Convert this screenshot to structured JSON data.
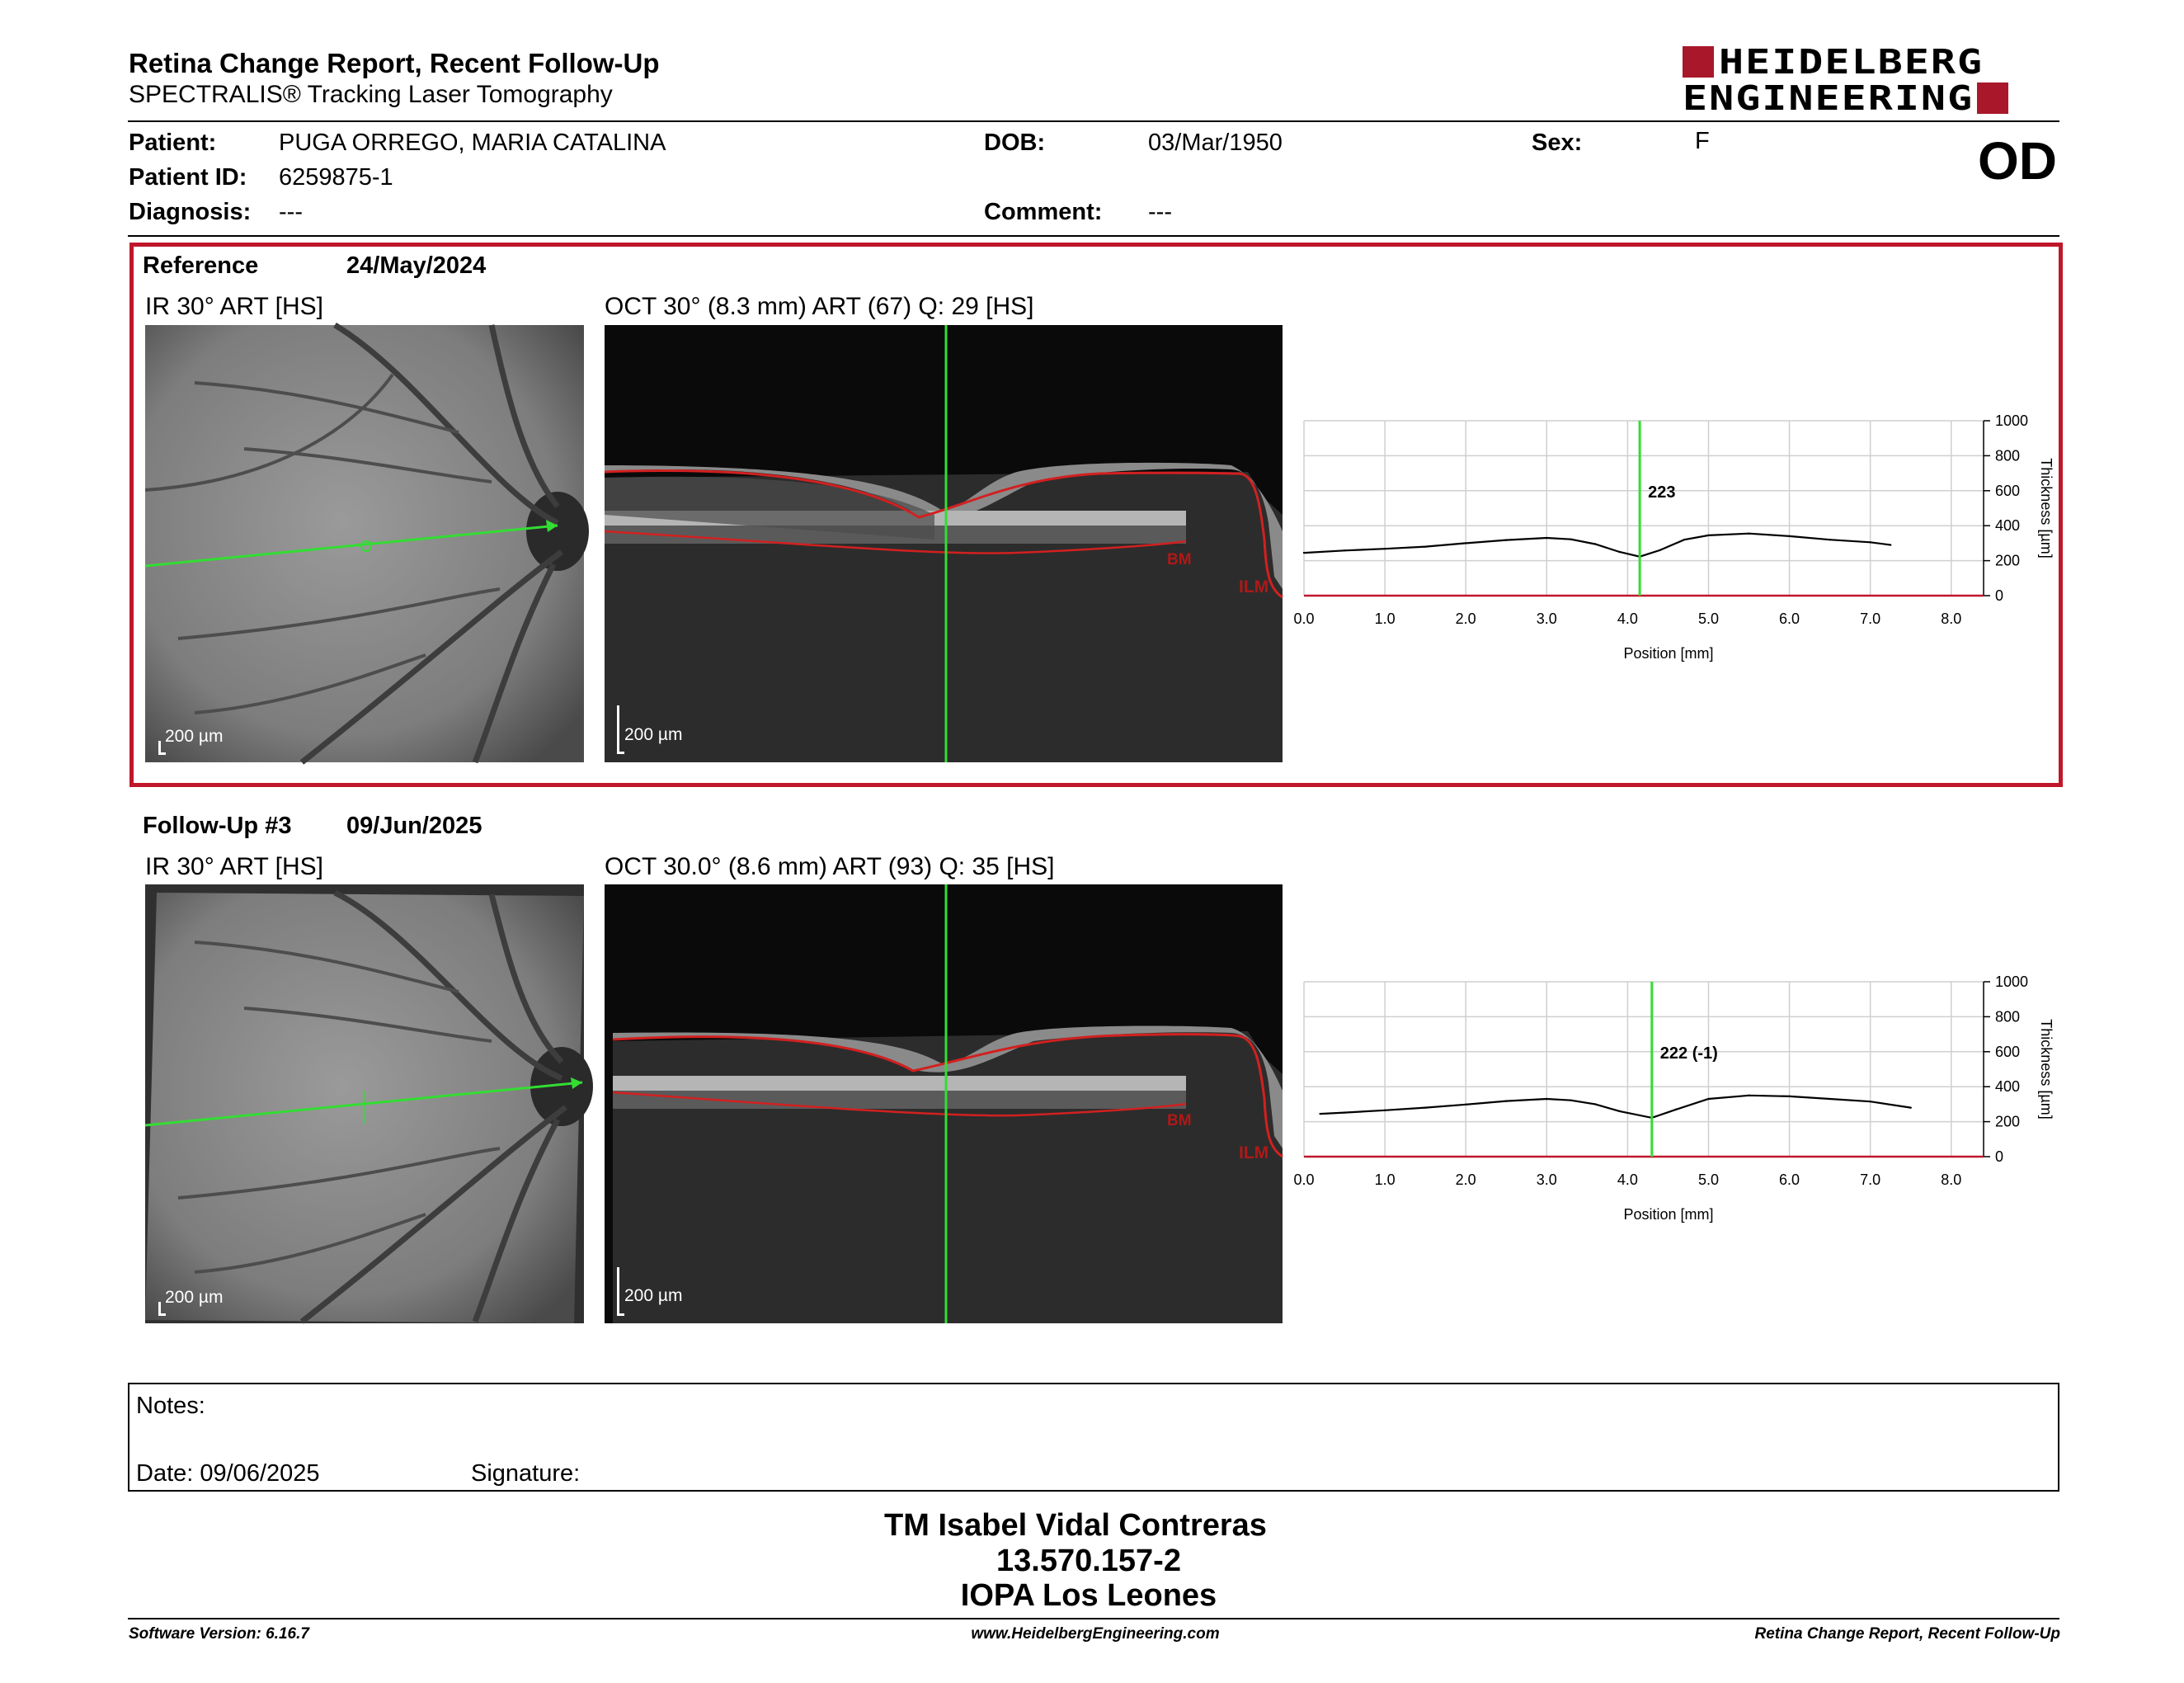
{
  "report": {
    "title": "Retina Change Report, Recent Follow-Up",
    "subtitle": "SPECTRALIS® Tracking Laser Tomography"
  },
  "logo": {
    "line1": "HEIDELBERG",
    "line2": "ENGINEERING",
    "accent_color": "#a8182a"
  },
  "patient": {
    "patient_label": "Patient:",
    "patient_value": "PUGA ORREGO, MARIA CATALINA",
    "id_label": "Patient ID:",
    "id_value": "6259875-1",
    "diagnosis_label": "Diagnosis:",
    "diagnosis_value": "---",
    "dob_label": "DOB:",
    "dob_value": "03/Mar/1950",
    "comment_label": "Comment:",
    "comment_value": "---",
    "sex_label": "Sex:",
    "sex_value": "F",
    "eye": "OD"
  },
  "reference": {
    "label": "Reference",
    "date": "24/May/2024",
    "ir_title": "IR 30° ART [HS]",
    "oct_title": "OCT 30° (8.3 mm) ART (67) Q: 29 [HS]",
    "scale": "200 µm",
    "bm": "BM",
    "ilm": "ILM",
    "border_color": "#c0162a"
  },
  "followup": {
    "label": "Follow-Up #3",
    "date": "09/Jun/2025",
    "ir_title": "IR 30° ART [HS]",
    "oct_title": "OCT 30.0° (8.6 mm) ART (93) Q: 35 [HS]",
    "scale": "200 µm",
    "bm": "BM",
    "ilm": "ILM"
  },
  "chart_data": [
    {
      "type": "line",
      "xlabel": "Position [mm]",
      "ylabel": "Thickness [µm]",
      "xlim": [
        0,
        8.4
      ],
      "ylim": [
        0,
        1000
      ],
      "xticks": [
        "0.0",
        "1.0",
        "2.0",
        "3.0",
        "4.0",
        "5.0",
        "6.0",
        "7.0",
        "8.0"
      ],
      "yticks": [
        "0",
        "200",
        "400",
        "600",
        "800",
        "1000"
      ],
      "marker_x": 4.15,
      "marker_label": "223",
      "line_color": "#000000",
      "marker_color": "#33dd33",
      "x": [
        0.0,
        0.5,
        1.0,
        1.5,
        2.0,
        2.5,
        3.0,
        3.3,
        3.6,
        3.9,
        4.15,
        4.4,
        4.7,
        5.0,
        5.5,
        6.0,
        6.5,
        7.0,
        7.25
      ],
      "y": [
        245,
        258,
        268,
        280,
        300,
        318,
        330,
        322,
        295,
        250,
        223,
        260,
        320,
        345,
        355,
        340,
        320,
        305,
        290
      ]
    },
    {
      "type": "line",
      "xlabel": "Position [mm]",
      "ylabel": "Thickness [µm]",
      "xlim": [
        0,
        8.4
      ],
      "ylim": [
        0,
        1000
      ],
      "xticks": [
        "0.0",
        "1.0",
        "2.0",
        "3.0",
        "4.0",
        "5.0",
        "6.0",
        "7.0",
        "8.0"
      ],
      "yticks": [
        "0",
        "200",
        "400",
        "600",
        "800",
        "1000"
      ],
      "marker_x": 4.3,
      "marker_label": "222 (-1)",
      "line_color": "#000000",
      "marker_color": "#33dd33",
      "x": [
        0.2,
        0.5,
        1.0,
        1.5,
        2.0,
        2.5,
        3.0,
        3.3,
        3.6,
        3.9,
        4.3,
        4.6,
        5.0,
        5.5,
        6.0,
        6.5,
        7.0,
        7.5
      ],
      "y": [
        245,
        252,
        265,
        280,
        298,
        318,
        330,
        322,
        300,
        260,
        222,
        270,
        330,
        350,
        345,
        330,
        315,
        280
      ]
    }
  ],
  "notes": {
    "notes_label": "Notes:",
    "date_label": "Date: 09/06/2025",
    "signature_label": "Signature:"
  },
  "signatory": {
    "name": "TM Isabel Vidal Contreras",
    "id": "13.570.157-2",
    "org": "IOPA Los Leones"
  },
  "footer": {
    "version": "Software Version: 6.16.7",
    "website": "www.HeidelbergEngineering.com",
    "report_name": "Retina Change Report, Recent Follow-Up"
  }
}
